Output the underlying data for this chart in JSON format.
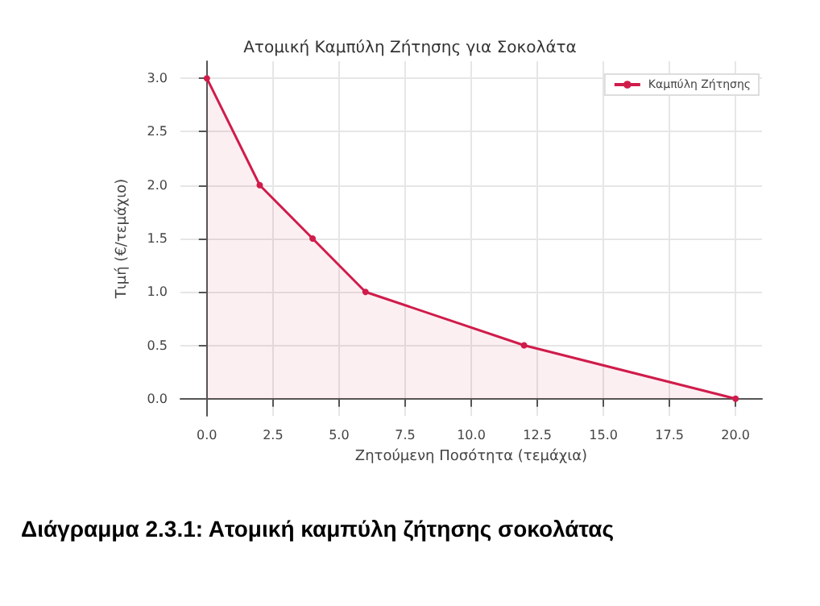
{
  "chart_data": {
    "type": "area",
    "title": "Ατομική Καμπύλη Ζήτησης για Σοκολάτα",
    "xlabel": "Ζητούμενη Ποσότητα (τεμάχια)",
    "ylabel": "Τιμή (€/τεμάχιο)",
    "annotations": [
      "Διάγραμμα 2.3.1: Ατομική καμπύλη ζήτησης σοκολάτας"
    ],
    "x": [
      0,
      2,
      4,
      6,
      12,
      20
    ],
    "series": [
      {
        "name": "Καμπύλη Ζήτησης",
        "color": "#d01c4b",
        "values": [
          3,
          2,
          1.5,
          1,
          0.5,
          0
        ]
      }
    ],
    "xlim": [
      -1,
      21
    ],
    "ylim": [
      -0.16,
      3.16
    ],
    "xticks": [
      {
        "value": 0,
        "label": "0.0"
      },
      {
        "value": 2.5,
        "label": "2.5"
      },
      {
        "value": 5,
        "label": "5.0"
      },
      {
        "value": 7.5,
        "label": "7.5"
      },
      {
        "value": 10,
        "label": "10.0"
      },
      {
        "value": 12.5,
        "label": "12.5"
      },
      {
        "value": 15,
        "label": "15.0"
      },
      {
        "value": 17.5,
        "label": "17.5"
      },
      {
        "value": 20,
        "label": "20.0"
      }
    ],
    "yticks": [
      {
        "value": 0,
        "label": "0.0"
      },
      {
        "value": 0.5,
        "label": "0.5"
      },
      {
        "value": 1,
        "label": "1.0"
      },
      {
        "value": 1.5,
        "label": "1.5"
      },
      {
        "value": 2,
        "label": "2.0"
      },
      {
        "value": 2.5,
        "label": "2.5"
      },
      {
        "value": 3,
        "label": "3.0"
      }
    ],
    "grid": true,
    "legend": "top right",
    "marker": "circle",
    "line_style": "solid"
  }
}
